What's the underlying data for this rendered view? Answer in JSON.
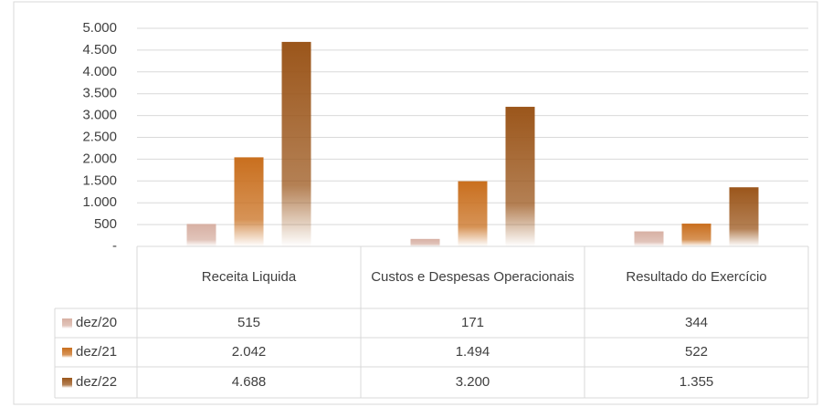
{
  "chart_data": {
    "type": "bar",
    "categories": [
      "Receita Liquida",
      "Custos e Despesas Operacionais",
      "Resultado do Exercício"
    ],
    "series": [
      {
        "name": "dez/20",
        "color": "#d7b0a3",
        "values": [
          515,
          171,
          344
        ],
        "value_labels": [
          "515",
          "171",
          "344"
        ]
      },
      {
        "name": "dez/21",
        "color": "#c96f1e",
        "values": [
          2042,
          1494,
          522
        ],
        "value_labels": [
          "2.042",
          "1.494",
          "522"
        ]
      },
      {
        "name": "dez/22",
        "color": "#9b561b",
        "values": [
          4688,
          3200,
          1355
        ],
        "value_labels": [
          "4.688",
          "3.200",
          "1.355"
        ]
      }
    ],
    "ylim": [
      0,
      5000
    ],
    "yticks": [
      {
        "value": 0,
        "label": "-"
      },
      500,
      {
        "value": 1000,
        "label": "1.000"
      },
      {
        "value": 1500,
        "label": "1.500"
      },
      {
        "value": 2000,
        "label": "2.000"
      },
      {
        "value": 2500,
        "label": "2.500"
      },
      {
        "value": 3000,
        "label": "3.000"
      },
      {
        "value": 3500,
        "label": "3.500"
      },
      {
        "value": 4000,
        "label": "4.000"
      },
      {
        "value": 4500,
        "label": "4.500"
      },
      {
        "value": 5000,
        "label": "5.000"
      }
    ],
    "grid": true
  }
}
